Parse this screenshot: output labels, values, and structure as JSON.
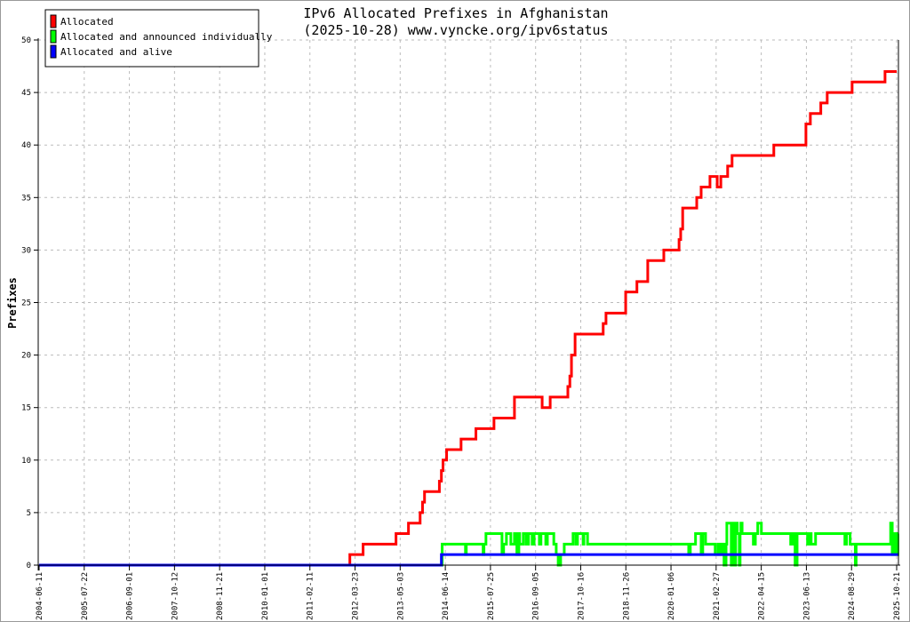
{
  "chart_data": {
    "type": "line",
    "title": "IPv6 Allocated Prefixes in Afghanistan",
    "subtitle": "(2025-10-28) www.vyncke.org/ipv6status",
    "xlabel": "",
    "ylabel": "Prefixes",
    "ylim": [
      0,
      50
    ],
    "xlim_years": [
      2004.44,
      2025.86
    ],
    "yticks": [
      0,
      5,
      10,
      15,
      20,
      25,
      30,
      35,
      40,
      45,
      50
    ],
    "xtick_labels": [
      "2004-06-11",
      "2005-07-22",
      "2006-09-01",
      "2007-10-12",
      "2008-11-21",
      "2010-01-01",
      "2011-02-11",
      "2012-03-23",
      "2013-05-03",
      "2014-06-14",
      "2015-07-25",
      "2016-09-05",
      "2017-10-16",
      "2018-11-26",
      "2020-01-06",
      "2021-02-27",
      "2022-04-15",
      "2023-06-13",
      "2024-08-29",
      "2025-10-21"
    ],
    "grid": true,
    "legend_position": "top-left",
    "series": [
      {
        "name": "Allocated",
        "color": "#ff0000",
        "step": true,
        "points": [
          [
            2004.44,
            0
          ],
          [
            2012.18,
            1
          ],
          [
            2012.51,
            2
          ],
          [
            2013.33,
            3
          ],
          [
            2013.64,
            4
          ],
          [
            2013.93,
            5
          ],
          [
            2013.99,
            6
          ],
          [
            2014.04,
            7
          ],
          [
            2014.41,
            8
          ],
          [
            2014.46,
            9
          ],
          [
            2014.5,
            10
          ],
          [
            2014.59,
            11
          ],
          [
            2014.95,
            12
          ],
          [
            2015.32,
            13
          ],
          [
            2015.77,
            14
          ],
          [
            2016.28,
            16
          ],
          [
            2016.97,
            15
          ],
          [
            2017.17,
            16
          ],
          [
            2017.61,
            17
          ],
          [
            2017.66,
            18
          ],
          [
            2017.7,
            20
          ],
          [
            2017.79,
            22
          ],
          [
            2018.49,
            23
          ],
          [
            2018.56,
            24
          ],
          [
            2019.05,
            26
          ],
          [
            2019.33,
            27
          ],
          [
            2019.6,
            29
          ],
          [
            2020.0,
            30
          ],
          [
            2020.38,
            31
          ],
          [
            2020.42,
            32
          ],
          [
            2020.47,
            34
          ],
          [
            2020.82,
            35
          ],
          [
            2020.93,
            36
          ],
          [
            2021.15,
            37
          ],
          [
            2021.33,
            36
          ],
          [
            2021.42,
            37
          ],
          [
            2021.59,
            38
          ],
          [
            2021.7,
            39
          ],
          [
            2022.74,
            40
          ],
          [
            2023.54,
            42
          ],
          [
            2023.65,
            43
          ],
          [
            2023.91,
            44
          ],
          [
            2024.07,
            45
          ],
          [
            2024.69,
            46
          ],
          [
            2025.51,
            47
          ],
          [
            2025.8,
            47
          ]
        ]
      },
      {
        "name": "Allocated and announced individually",
        "color": "#00ff00",
        "step": true,
        "points": [
          [
            2004.44,
            0
          ],
          [
            2014.48,
            2
          ],
          [
            2015.06,
            1
          ],
          [
            2015.08,
            2
          ],
          [
            2015.5,
            1
          ],
          [
            2015.52,
            2
          ],
          [
            2015.57,
            3
          ],
          [
            2015.97,
            1
          ],
          [
            2016.01,
            2
          ],
          [
            2016.08,
            3
          ],
          [
            2016.19,
            2
          ],
          [
            2016.28,
            3
          ],
          [
            2016.34,
            1
          ],
          [
            2016.39,
            3
          ],
          [
            2016.41,
            2
          ],
          [
            2016.5,
            3
          ],
          [
            2016.57,
            2
          ],
          [
            2016.63,
            3
          ],
          [
            2016.72,
            2
          ],
          [
            2016.77,
            3
          ],
          [
            2016.9,
            2
          ],
          [
            2016.94,
            3
          ],
          [
            2017.06,
            2
          ],
          [
            2017.1,
            3
          ],
          [
            2017.26,
            2
          ],
          [
            2017.32,
            1
          ],
          [
            2017.37,
            0
          ],
          [
            2017.43,
            1
          ],
          [
            2017.52,
            2
          ],
          [
            2017.74,
            3
          ],
          [
            2017.81,
            2
          ],
          [
            2017.85,
            3
          ],
          [
            2017.99,
            2
          ],
          [
            2018.01,
            3
          ],
          [
            2018.1,
            2
          ],
          [
            2020.62,
            1
          ],
          [
            2020.66,
            2
          ],
          [
            2020.79,
            3
          ],
          [
            2020.93,
            1
          ],
          [
            2020.97,
            3
          ],
          [
            2021.04,
            2
          ],
          [
            2021.28,
            1
          ],
          [
            2021.35,
            2
          ],
          [
            2021.41,
            1
          ],
          [
            2021.46,
            2
          ],
          [
            2021.5,
            0
          ],
          [
            2021.55,
            2
          ],
          [
            2021.57,
            4
          ],
          [
            2021.68,
            0
          ],
          [
            2021.7,
            4
          ],
          [
            2021.75,
            0
          ],
          [
            2021.79,
            4
          ],
          [
            2021.83,
            3
          ],
          [
            2021.88,
            0
          ],
          [
            2021.9,
            3
          ],
          [
            2021.92,
            4
          ],
          [
            2021.95,
            3
          ],
          [
            2022.23,
            2
          ],
          [
            2022.28,
            3
          ],
          [
            2022.34,
            4
          ],
          [
            2022.43,
            3
          ],
          [
            2023.16,
            2
          ],
          [
            2023.21,
            3
          ],
          [
            2023.27,
            0
          ],
          [
            2023.32,
            3
          ],
          [
            2023.58,
            2
          ],
          [
            2023.63,
            3
          ],
          [
            2023.67,
            2
          ],
          [
            2023.78,
            3
          ],
          [
            2024.51,
            2
          ],
          [
            2024.55,
            3
          ],
          [
            2024.64,
            2
          ],
          [
            2024.77,
            0
          ],
          [
            2024.79,
            2
          ],
          [
            2025.65,
            4
          ],
          [
            2025.69,
            1
          ],
          [
            2025.72,
            3
          ],
          [
            2025.78,
            1
          ],
          [
            2025.83,
            3
          ],
          [
            2025.86,
            3
          ]
        ]
      },
      {
        "name": "Allocated and alive",
        "color": "#0000ff",
        "step": true,
        "points": [
          [
            2004.44,
            0
          ],
          [
            2014.46,
            1
          ],
          [
            2025.86,
            1
          ]
        ]
      }
    ]
  }
}
